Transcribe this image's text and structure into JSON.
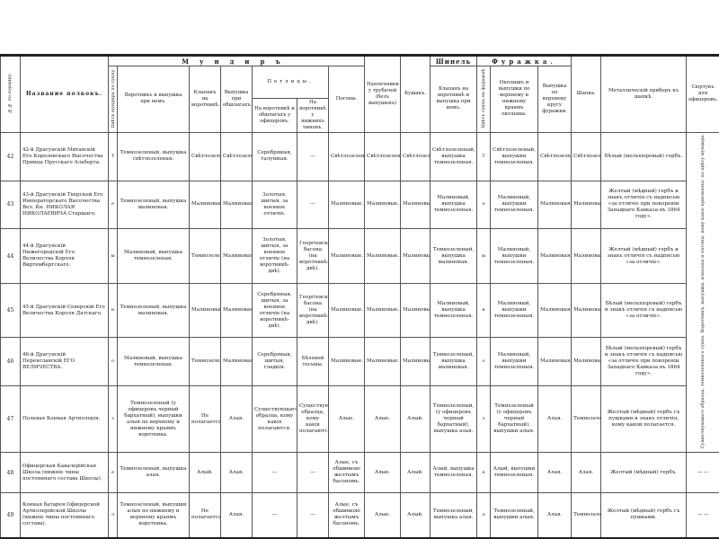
{
  "header": {
    "num": "№№ по порядку.",
    "name": "Название полковъ.",
    "group_mundir": "Мундиръ",
    "cloth_color": "Цвѣтъ мундира по сукну.",
    "collar": "Воротникъ и выпушка при немъ.",
    "cuffs": "Клапанъ на воротникѣ.",
    "piping": "Выпушка при обшлагахъ.",
    "group_petlitsy": "Петлицы.",
    "petl_officers": "На воротникѣ и обшлагахъ у офицеровъ.",
    "petl_lower": "На воротникѣ у нижнихъ чиновъ.",
    "epaulets": "Погоны.",
    "trumpeters": "Наплечники у трубачей (безъ выпушекъ)",
    "sash": "Кушакъ.",
    "group_shinel": "Шинель",
    "shinel_flap": "Клапанъ на воротникѣ и выпушка при немъ.",
    "group_furazhka": "Фуражка.",
    "cap_color": "Цвѣтъ сукна на фуражкѣ.",
    "cap_band": "Околышъ и выпушки по верхнему и нижнему краямъ околыша.",
    "cap_piping": "Выпушка по верхнему кругу фуражки.",
    "hat": "Шапка.",
    "metal": "Металлическій приборъ къ шапкѣ.",
    "surtuk": "Сюртукъ для офицеровъ."
  },
  "rows": [
    {
      "num": "42",
      "name": "42-й Драгунскій Митавскій Его Королевскаго Высочества Принца Прусскаго Альберта.",
      "color": "Т",
      "collar": "Темнозеленый, выпушка свѣтлозеленая.",
      "klapan": "Свѣтлозеленый.",
      "vypushka": "Свѣтлозеленая.",
      "petl_off": "Серебряныя, галунныя.",
      "petl_low": "—",
      "pogony": "Свѣтлозеленыя.",
      "naplech": "Свѣтлозеленые.",
      "kushak": "Свѣтлозеленый.",
      "shinel": "Свѣтлозеленый, выпушка темнозеленая.",
      "capc": "Т",
      "okolysh": "Свѣтлозеленый, выпушки темнозеленыя.",
      "cappip": "Свѣтлозеленая.",
      "shapka": "Свѣтлозеленая.",
      "metal": "Бѣлый (мельхіоровый) гербъ."
    },
    {
      "num": "43",
      "name": "43-й Драгунскій Тверской Его Императорскаго Высочества Вел. Кн. НИКОЛАЯ НИКОЛАЕВИЧА Старшаго.",
      "color": "е",
      "collar": "Темнозеленый, выпушка малиновая.",
      "klapan": "Малиновый.",
      "vypushka": "Малиновая.",
      "petl_off": "Золотыя, шитыя, за военное отличіе.",
      "petl_low": "—",
      "pogony": "Малиновые.",
      "naplech": "Малиновые.",
      "kushak": "Малиновый.",
      "shinel": "Малиновый, выпушка темнозеленая.",
      "capc": "е",
      "okolysh": "Малиновый, выпушки темнозеленыя.",
      "cappip": "Малиновая.",
      "shapka": "Малиновая.",
      "metal": "Желтый (мѣдный) гербъ и знакъ отличія съ надписью «за отличіе при покореніи Западнаго Кавказа въ 1864 году»."
    },
    {
      "num": "44",
      "name": "44-й Драгунскій Нижегородскій Его Величества Короля Виртембергскаго.",
      "color": "м",
      "collar": "Малиновый, выпушка темнозеленая.",
      "klapan": "Темнозеленый.",
      "vypushka": "Малиновая.",
      "petl_off": "Золотыя, шитыя, за военное отличіе (на воротникѣ-двѣ).",
      "petl_low": "Георгіевскаго басона (на воротникѣ-двѣ).",
      "pogony": "Малиновые.",
      "naplech": "Малиновые.",
      "kushak": "Малиновый.",
      "shinel": "Темнозеленый, выпушка малиновая.",
      "capc": "м",
      "okolysh": "Малиновый, выпушки темнозеленыя.",
      "cappip": "Малиновая.",
      "shapka": "Малиновая.",
      "metal": "Желтый (мѣдный) гербъ и знакъ отличія съ надписью «за отличіе»."
    },
    {
      "num": "45",
      "name": "45-й Драгунскій Северскій Его Величества Короля Датскаго.",
      "color": "н",
      "collar": "Темнозеленый, выпушка малиновая.",
      "klapan": "Малиновый.",
      "vypushka": "Малиновая.",
      "petl_off": "Серебряныя, шитыя, за военное отличіе (на воротникѣ-двѣ).",
      "petl_low": "Георгіевскаго басона (на воротникѣ-двѣ).",
      "pogony": "Малиновые.",
      "naplech": "Малиновые.",
      "kushak": "Малиновый.",
      "shinel": "Малиновый, выпушка темнозеленая.",
      "capc": "н",
      "okolysh": "Малиновый, выпушки темнозеленыя.",
      "cappip": "Малиновая.",
      "shapka": "Малиновая.",
      "metal": "Бѣлый (мельхіоровый) гербъ и знакъ отличія съ надписью «за отличіе»."
    },
    {
      "num": "46",
      "name": "46-й Драгунскій Переяславскій ЕГО ВЕЛИЧЕСТВА.",
      "color": "о",
      "collar": "Малиновый, выпушка темнозеленая.",
      "klapan": "Темнозеленый.",
      "vypushka": "Малиновая.",
      "petl_off": "Серебряныя, шитыя, гладкія.",
      "petl_low": "Бѣлевой тесьмы.",
      "pogony": "Малиновые.",
      "naplech": "Малиновые.",
      "kushak": "Малиновый.",
      "shinel": "Темнозеленый, выпушка малиновая.",
      "capc": "о",
      "okolysh": "Малиновый, выпушки темнозеленыя.",
      "cappip": "Малиновая.",
      "shapka": "Малиновая.",
      "metal": "Бѣлый (мельхіоровый) гербъ и знакъ отличія съ надписью «за отличіе при покореніи Западнаго Кавказа въ 1864 году»."
    },
    {
      "num": "47",
      "name": "Полевая Конная Артиллерія.",
      "color": "з",
      "collar": "Темнозеленый (у офицеровъ черный бархатный), выпушки алыя по верхнему и нижнему краямъ воротника.",
      "klapan": "Не полагается.",
      "vypushka": "Алая.",
      "petl_off": "Существующаго образца, кому какія полагаются.",
      "petl_low": "Существующаго образца, кому какія полагаются.",
      "pogony": "Алые.",
      "naplech": "Алые.",
      "kushak": "Алый.",
      "shinel": "Темнозеленый, (у офицеровъ черный бархатный), выпушка алая.",
      "capc": "з",
      "okolysh": "Темнозеленый (у офицеровъ черный бархатный), выпушки алыя.",
      "cappip": "Алая.",
      "shapka": "Темнозеленая.",
      "metal": "Желтый (мѣдный) гербъ съ пушками и знакъ отличія, кому какой полагается."
    },
    {
      "num": "48",
      "name": "Офицерская Кавалерійская Школа (нижніе чины постояннаго состава Школы).",
      "color": "е",
      "collar": "Темнозеленый, выпушка алая.",
      "klapan": "Алый.",
      "vypushka": "Алая.",
      "petl_off": "—",
      "petl_low": "—",
      "pogony": "Алые, съ обшивкою желтымъ басономъ.",
      "naplech": "Алые.",
      "kushak": "Алый.",
      "shinel": "Алый, выпушка темнозеленая.",
      "capc": "е",
      "okolysh": "Алый, выпушки темнозеленыя.",
      "cappip": "Алая.",
      "shapka": "Алая.",
      "metal": "Желтый (мѣдный) гербъ."
    },
    {
      "num": "49",
      "name": "Конная батарея Офицерской Артиллерійской Школы (нижніе чины постояннаго состава).",
      "color": "л",
      "collar": "Темнозеленый, выпушки алыя по нижнему и верхнему краямъ воротника.",
      "klapan": "Не полагается.",
      "vypushka": "Алая.",
      "petl_off": "—",
      "petl_low": "—",
      "pogony": "Алые, съ обшивкою желтымъ басономъ.",
      "naplech": "Алые.",
      "kushak": "Алый.",
      "shinel": "Темнозеленый, выпушка алая.",
      "capc": "л",
      "okolysh": "Темнозеленый, выпушки алыя.",
      "cappip": "Алая.",
      "shapka": "Темнозеленая.",
      "metal": "Желтый (мѣдный) гербъ съ пушками."
    }
  ],
  "surtuk_note": "Существующаго образца, темнозеленаго сукна. Воротникъ, выпушки, клапаны и погоны, кому какіе присвоены, по цвѣту мундира.",
  "surtuk_dash": "— —"
}
